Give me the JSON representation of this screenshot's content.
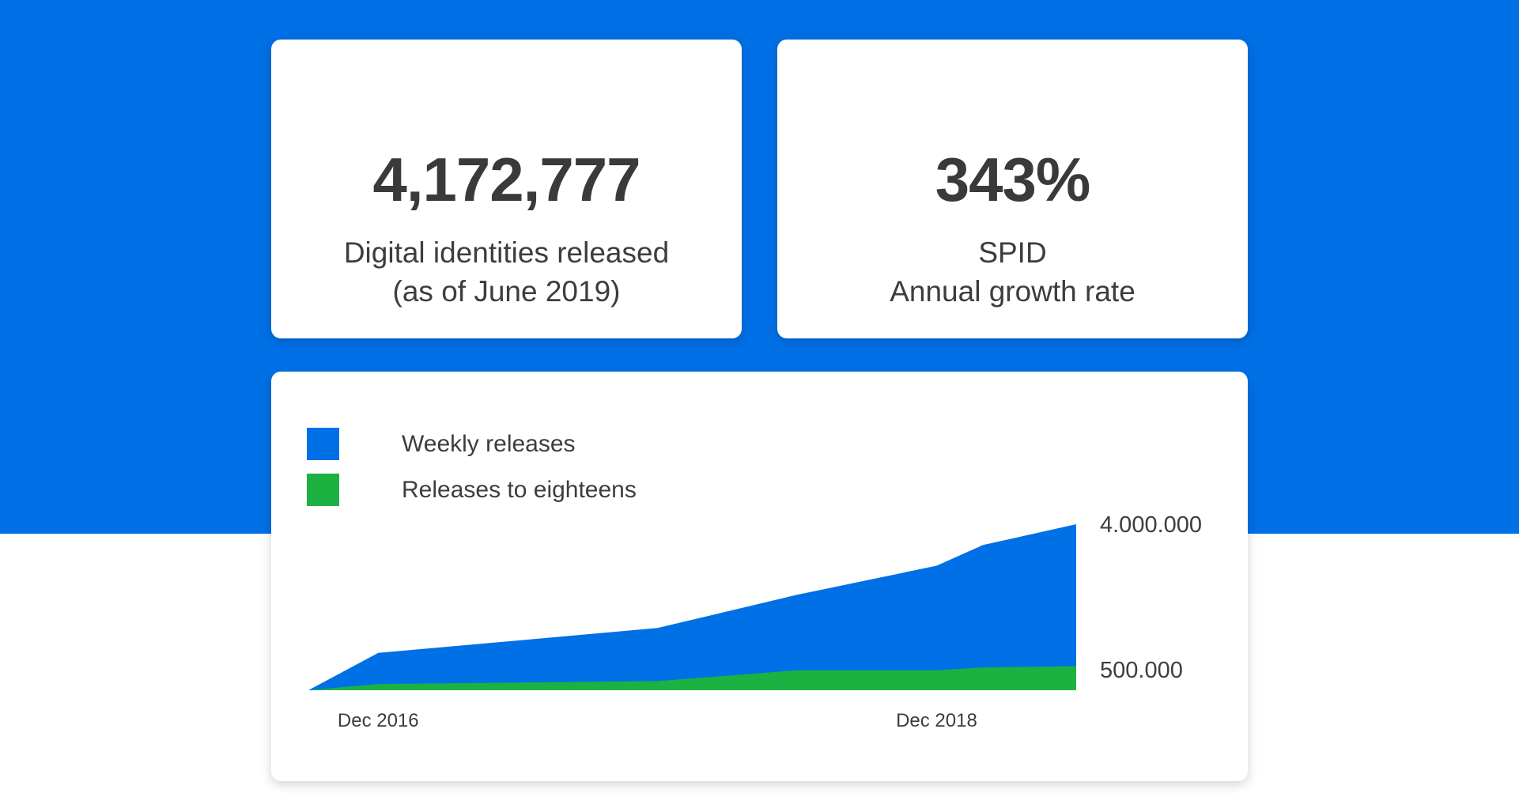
{
  "colors": {
    "brand_blue": "#0070e6",
    "green": "#1db142",
    "card_bg": "#ffffff",
    "text": "#3d3d3d"
  },
  "stats": [
    {
      "value": "4,172,777",
      "caption_line1": "Digital identities released",
      "caption_line2": "(as of June 2019)"
    },
    {
      "value": "343%",
      "caption_line1": "SPID",
      "caption_line2": "Annual growth rate"
    }
  ],
  "chart_data": {
    "type": "area",
    "title": "",
    "xlabel": "",
    "ylabel": "",
    "legend_position": "top-left",
    "grid": false,
    "x": [
      "2016-09",
      "2016-12",
      "2017-12",
      "2018-06",
      "2018-12",
      "2019-02",
      "2019-06"
    ],
    "x_tick_labels": [
      "Dec 2016",
      "Dec 2018"
    ],
    "x_tick_values": [
      "2016-12",
      "2018-12"
    ],
    "y_tick_labels": [
      "4.000.000",
      "500.000"
    ],
    "y_tick_values": [
      4000000,
      500000
    ],
    "ylim": [
      0,
      4000000
    ],
    "series": [
      {
        "name": "Weekly releases",
        "color": "#0070e6",
        "values": [
          0,
          900000,
          1500000,
          2300000,
          3000000,
          3500000,
          4000000
        ]
      },
      {
        "name": "Releases to eighteens",
        "color": "#1db142",
        "values": [
          0,
          150000,
          220000,
          480000,
          480000,
          550000,
          580000
        ]
      }
    ]
  }
}
